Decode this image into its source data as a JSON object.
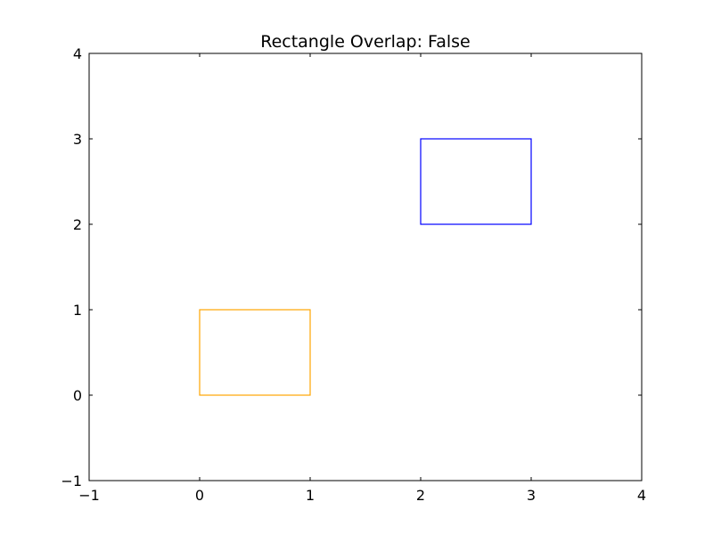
{
  "chart_data": {
    "type": "rectangles",
    "title": "Rectangle Overlap: False",
    "xlabel": "",
    "ylabel": "",
    "xlim": [
      -1,
      4
    ],
    "ylim": [
      -1,
      4
    ],
    "grid": false,
    "x_ticks": [
      "−1",
      "0",
      "1",
      "2",
      "3",
      "4"
    ],
    "y_ticks": [
      "−1",
      "0",
      "1",
      "2",
      "3",
      "4"
    ],
    "x_tick_values": [
      -1,
      0,
      1,
      2,
      3,
      4
    ],
    "y_tick_values": [
      -1,
      0,
      1,
      2,
      3,
      4
    ],
    "rectangles": [
      {
        "x": 0,
        "y": 0,
        "width": 1,
        "height": 1,
        "color": "#ffa500"
      },
      {
        "x": 2,
        "y": 2,
        "width": 1,
        "height": 1,
        "color": "#0000ff"
      }
    ]
  }
}
